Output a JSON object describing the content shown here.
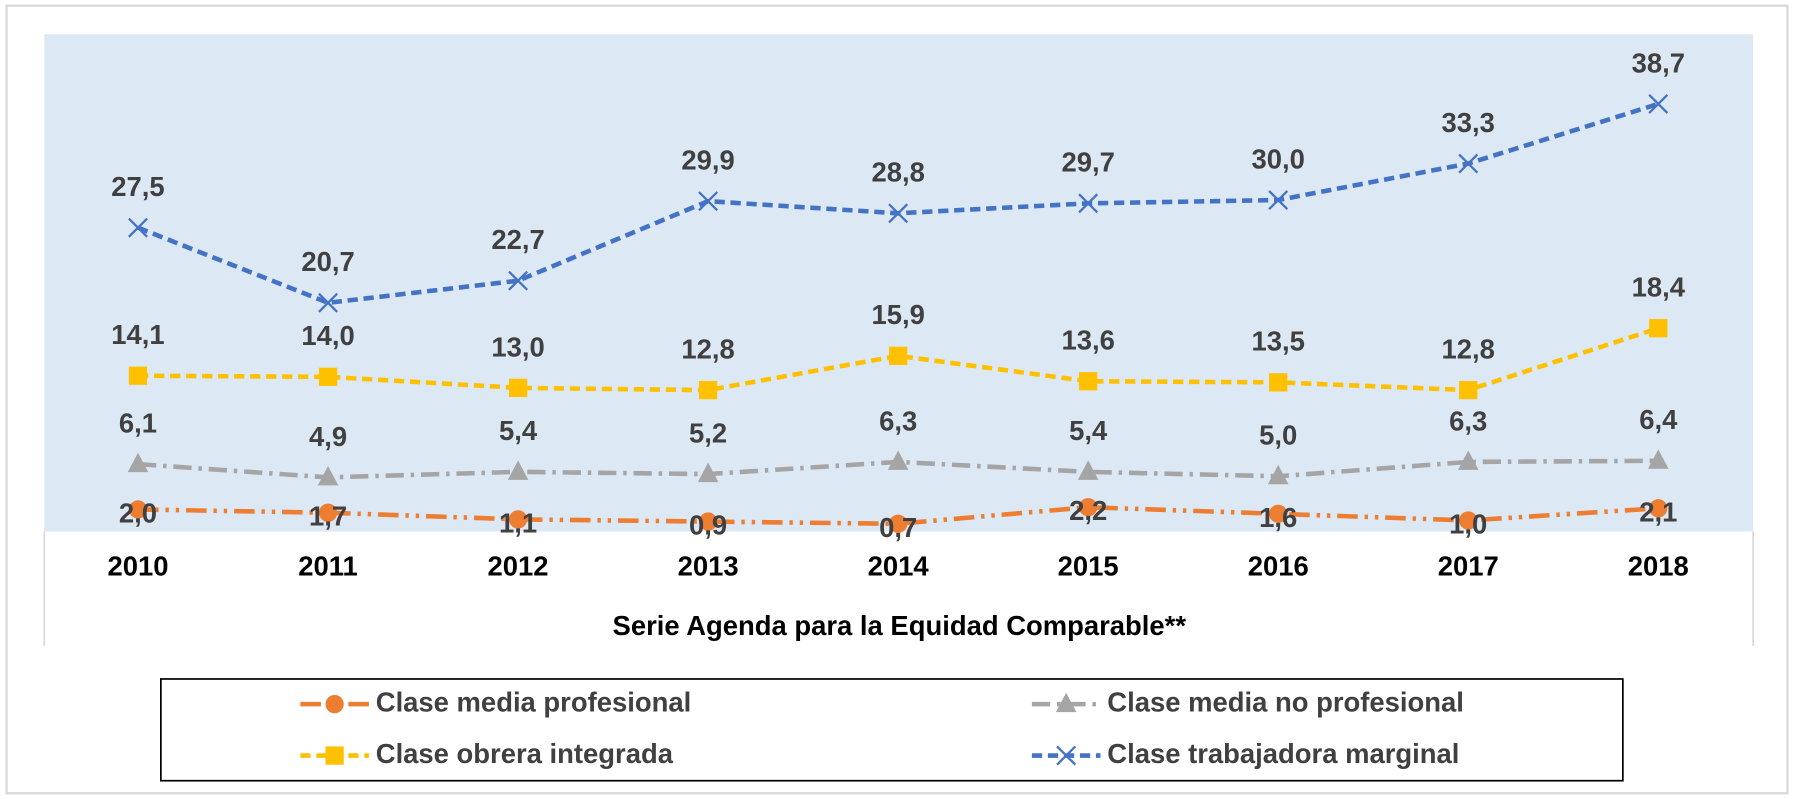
{
  "chart_data": {
    "type": "line",
    "x_label": "Serie Agenda para la Equidad Comparable**",
    "categories": [
      "2010",
      "2011",
      "2012",
      "2013",
      "2014",
      "2015",
      "2016",
      "2017",
      "2018"
    ],
    "ylim": [
      0,
      45
    ],
    "legend": "bottom",
    "series": [
      {
        "name": "Clase media profesional",
        "color": "#ED7D31",
        "marker": "circle",
        "dash": "18,6,3,6,3,6",
        "values": [
          2.0,
          1.7,
          1.1,
          0.9,
          0.7,
          2.2,
          1.6,
          1.0,
          2.1
        ],
        "value_labels": [
          "2,0",
          "1,7",
          "1,1",
          "0,9",
          "0,7",
          "2,2",
          "1,6",
          "1,0",
          "2,1"
        ]
      },
      {
        "name": "Clase media no profesional",
        "color": "#A5A5A5",
        "marker": "triangle",
        "dash": "16,6,3,6",
        "values": [
          6.1,
          4.9,
          5.4,
          5.2,
          6.3,
          5.4,
          5.0,
          6.3,
          6.4
        ],
        "value_labels": [
          "6,1",
          "4,9",
          "5,4",
          "5,2",
          "6,3",
          "5,4",
          "5,0",
          "6,3",
          "6,4"
        ]
      },
      {
        "name": "Clase obrera integrada",
        "color": "#FFC000",
        "marker": "square",
        "dash": "9,5",
        "values": [
          14.1,
          14.0,
          13.0,
          12.8,
          15.9,
          13.6,
          13.5,
          12.8,
          18.4
        ],
        "value_labels": [
          "14,1",
          "14,0",
          "13,0",
          "12,8",
          "15,9",
          "13,6",
          "13,5",
          "12,8",
          "18,4"
        ]
      },
      {
        "name": "Clase trabajadora marginal",
        "color": "#4472C4",
        "marker": "x",
        "dash": "9,5",
        "values": [
          27.5,
          20.7,
          22.7,
          29.9,
          28.8,
          29.7,
          30.0,
          33.3,
          38.7
        ],
        "value_labels": [
          "27,5",
          "20,7",
          "22,7",
          "29,9",
          "28,8",
          "29,7",
          "30,0",
          "33,3",
          "38,7"
        ]
      }
    ]
  }
}
